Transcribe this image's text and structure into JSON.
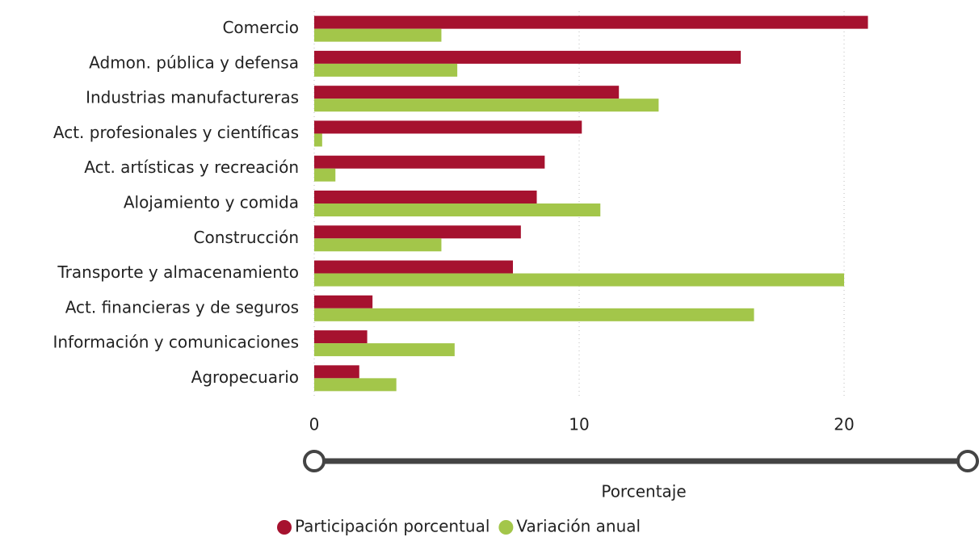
{
  "chart_data": {
    "type": "bar",
    "orientation": "horizontal",
    "categories": [
      "Comercio",
      "Admon. pública y defensa",
      "Industrias manufactureras",
      "Act. profesionales y científicas",
      "Act. artísticas y recreación",
      "Alojamiento y comida",
      "Construcción",
      "Transporte y almacenamiento",
      "Act. financieras y de seguros",
      "Información y comunicaciones",
      "Agropecuario"
    ],
    "series": [
      {
        "name": "Participación porcentual",
        "color": "#a6122f",
        "values": [
          20.9,
          16.1,
          11.5,
          10.1,
          8.7,
          8.4,
          7.8,
          7.5,
          2.2,
          2.0,
          1.7
        ]
      },
      {
        "name": "Variación anual",
        "color": "#a3c64a",
        "values": [
          4.8,
          5.4,
          13.0,
          0.3,
          0.8,
          10.8,
          4.8,
          20.0,
          16.6,
          5.3,
          3.1
        ]
      }
    ],
    "x_label": "Porcentaje",
    "xlim": [
      0,
      25
    ],
    "xticks": [
      0,
      10,
      20
    ],
    "grid": true
  }
}
